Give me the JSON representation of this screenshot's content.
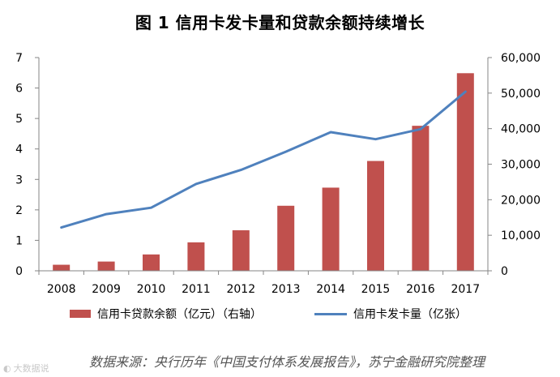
{
  "title": "图 1  信用卡发卡量和贷款余额持续增长",
  "chart_data": {
    "type": "bar+line",
    "categories": [
      "2008",
      "2009",
      "2010",
      "2011",
      "2012",
      "2013",
      "2014",
      "2015",
      "2016",
      "2017"
    ],
    "series": [
      {
        "name": "信用卡贷款余额（亿元）（右轴）",
        "type": "bar",
        "axis": "right",
        "color": "#c0504d",
        "values": [
          1700,
          2600,
          4600,
          8000,
          11400,
          18300,
          23400,
          30900,
          40800,
          55600
        ]
      },
      {
        "name": "信用卡发卡量（亿张）",
        "type": "line",
        "axis": "left",
        "color": "#4f81bd",
        "values": [
          1.42,
          1.86,
          2.07,
          2.85,
          3.31,
          3.91,
          4.55,
          4.32,
          4.65,
          5.88
        ]
      }
    ],
    "left_axis": {
      "ylim": [
        0,
        7
      ],
      "ticks": [
        "0",
        "1",
        "2",
        "3",
        "4",
        "5",
        "6",
        "7"
      ]
    },
    "right_axis": {
      "ylim": [
        0,
        60000
      ],
      "ticks": [
        "0",
        "10,000",
        "20,000",
        "30,000",
        "40,000",
        "50,000",
        "60,000"
      ]
    },
    "legend": "bottom",
    "grid": false
  },
  "legend": {
    "bar_label": "信用卡贷款余额（亿元）（右轴）",
    "line_label": "信用卡发卡量（亿张）"
  },
  "source": "数据来源：央行历年《中国支付体系发展报告》，苏宁金融研究院整理",
  "watermark": "大数据说"
}
